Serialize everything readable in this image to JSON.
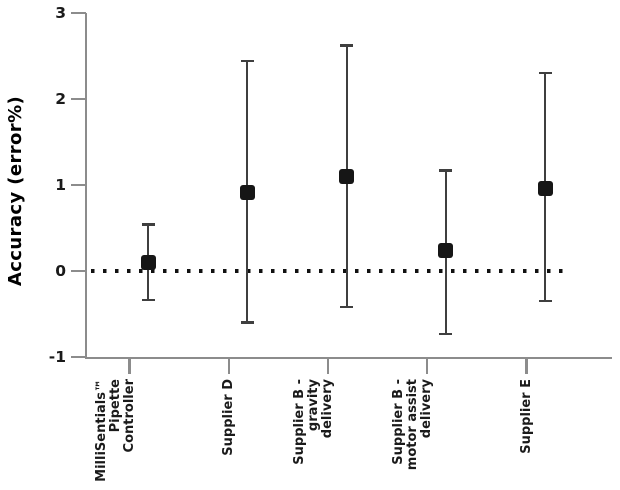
{
  "chart_data": {
    "type": "scatter",
    "title": "",
    "xlabel": "",
    "ylabel": "Accuracy (error%)",
    "ylim": [
      -1,
      3
    ],
    "yticks": [
      3,
      2,
      1,
      0,
      -1
    ],
    "grid": false,
    "legend": "none",
    "reference_line": {
      "value": 0,
      "style": "dotted",
      "color": "#111111"
    },
    "categories": [
      "MilliSentials™\nPipette\nController",
      "Supplier D",
      "Supplier B -\ngravity\ndelivery",
      "Supplier B -\nmotor assist\ndelivery",
      "Supplier E"
    ],
    "series": [
      {
        "name": "Accuracy (error%)",
        "marker": "filled-square",
        "means": [
          0.1,
          0.91,
          1.1,
          0.24,
          0.96
        ],
        "error_upper": [
          0.54,
          2.44,
          2.62,
          1.17,
          2.3
        ],
        "error_lower": [
          -0.34,
          -0.6,
          -0.42,
          -0.73,
          -0.35
        ]
      }
    ]
  },
  "colors": {
    "axis": "#8c8c8c",
    "error_bar": "#3f3f3f",
    "marker": "#161616",
    "dotted_line": "#111111",
    "text": "#1a1a1a"
  }
}
